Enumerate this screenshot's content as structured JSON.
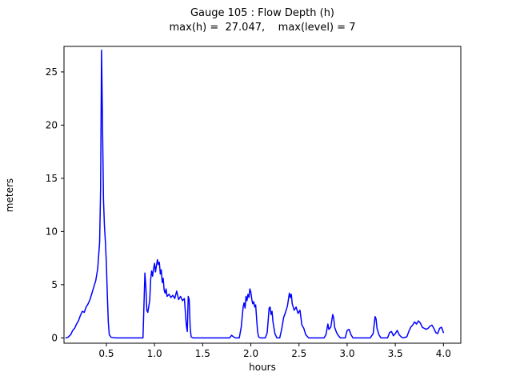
{
  "figure": {
    "title_line1": "Gauge 105 : Flow Depth (h)",
    "title_line2": "max(h) =  27.047,    max(level) = 7",
    "xlabel": "hours",
    "ylabel": "meters"
  },
  "chart_data": {
    "type": "line",
    "title": "Gauge 105 : Flow Depth (h)",
    "subtitle": "max(h) =  27.047,    max(level) = 7",
    "xlabel": "hours",
    "ylabel": "meters",
    "line_color": "#0000ff",
    "background": "#ffffff",
    "grid": false,
    "max_h": 27.047,
    "max_level": 7,
    "xlim": [
      0.06,
      4.18
    ],
    "ylim": [
      -0.5,
      27.4
    ],
    "xticks": [
      0.5,
      1.0,
      1.5,
      2.0,
      2.5,
      3.0,
      3.5,
      4.0
    ],
    "xtick_labels": [
      "0.5",
      "1.0",
      "1.5",
      "2.0",
      "2.5",
      "3.0",
      "3.5",
      "4.0"
    ],
    "yticks": [
      0,
      5,
      10,
      15,
      20,
      25
    ],
    "ytick_labels": [
      "0",
      "5",
      "10",
      "15",
      "20",
      "25"
    ],
    "x": [
      0.08,
      0.1,
      0.13,
      0.15,
      0.17,
      0.19,
      0.21,
      0.23,
      0.25,
      0.27,
      0.29,
      0.31,
      0.33,
      0.35,
      0.37,
      0.39,
      0.41,
      0.43,
      0.44,
      0.45,
      0.46,
      0.47,
      0.48,
      0.49,
      0.5,
      0.51,
      0.52,
      0.53,
      0.55,
      0.6,
      0.85,
      0.88,
      0.89,
      0.9,
      0.91,
      0.92,
      0.93,
      0.95,
      0.96,
      0.97,
      0.98,
      0.99,
      1.0,
      1.01,
      1.02,
      1.03,
      1.04,
      1.05,
      1.06,
      1.07,
      1.08,
      1.09,
      1.1,
      1.11,
      1.12,
      1.13,
      1.15,
      1.17,
      1.19,
      1.21,
      1.23,
      1.25,
      1.27,
      1.29,
      1.31,
      1.33,
      1.34,
      1.35,
      1.36,
      1.37,
      1.38,
      1.4,
      1.78,
      1.8,
      1.82,
      1.84,
      1.88,
      1.9,
      1.92,
      1.93,
      1.94,
      1.95,
      1.96,
      1.97,
      1.98,
      1.99,
      2.0,
      2.01,
      2.02,
      2.03,
      2.04,
      2.05,
      2.06,
      2.07,
      2.08,
      2.1,
      2.15,
      2.17,
      2.19,
      2.2,
      2.21,
      2.22,
      2.23,
      2.25,
      2.27,
      2.3,
      2.32,
      2.34,
      2.36,
      2.38,
      2.4,
      2.41,
      2.42,
      2.43,
      2.45,
      2.47,
      2.49,
      2.51,
      2.53,
      2.55,
      2.57,
      2.6,
      2.76,
      2.78,
      2.8,
      2.81,
      2.83,
      2.85,
      2.86,
      2.87,
      2.89,
      2.91,
      2.93,
      2.98,
      3.0,
      3.02,
      3.04,
      3.06,
      3.24,
      3.27,
      3.29,
      3.3,
      3.31,
      3.33,
      3.35,
      3.42,
      3.44,
      3.46,
      3.48,
      3.5,
      3.52,
      3.54,
      3.56,
      3.58,
      3.62,
      3.64,
      3.66,
      3.68,
      3.7,
      3.72,
      3.74,
      3.76,
      3.78,
      3.8,
      3.82,
      3.84,
      3.86,
      3.88,
      3.9,
      3.92,
      3.94,
      3.96,
      3.98,
      4.0
    ],
    "y": [
      0.0,
      0.05,
      0.3,
      0.7,
      0.9,
      1.3,
      1.6,
      2.1,
      2.5,
      2.4,
      2.9,
      3.2,
      3.6,
      4.2,
      4.8,
      5.4,
      6.5,
      9.0,
      14.0,
      27.047,
      20.0,
      13.0,
      10.5,
      9.0,
      7.0,
      4.0,
      1.5,
      0.3,
      0.05,
      0.0,
      0.0,
      0.0,
      3.0,
      6.1,
      4.8,
      2.6,
      2.4,
      3.5,
      5.5,
      6.3,
      5.8,
      6.5,
      7.0,
      6.2,
      6.8,
      7.35,
      6.9,
      7.1,
      6.0,
      6.4,
      5.2,
      5.6,
      4.5,
      4.2,
      4.6,
      3.9,
      4.1,
      3.8,
      4.0,
      3.7,
      4.4,
      3.6,
      3.9,
      3.5,
      3.7,
      1.2,
      0.6,
      3.9,
      3.6,
      1.0,
      0.1,
      0.0,
      0.0,
      0.25,
      0.1,
      0.0,
      0.0,
      1.0,
      2.9,
      3.3,
      2.8,
      3.9,
      3.5,
      4.1,
      3.8,
      4.6,
      4.3,
      3.6,
      3.2,
      3.4,
      2.9,
      3.1,
      1.8,
      0.6,
      0.1,
      0.0,
      0.0,
      0.5,
      2.8,
      2.9,
      2.2,
      2.5,
      1.5,
      0.4,
      0.0,
      0.0,
      0.8,
      1.9,
      2.4,
      3.0,
      4.2,
      3.8,
      4.1,
      3.2,
      2.6,
      2.9,
      2.3,
      2.6,
      1.2,
      0.9,
      0.3,
      0.0,
      0.0,
      0.3,
      1.3,
      0.8,
      1.0,
      2.2,
      1.9,
      1.0,
      0.5,
      0.2,
      0.0,
      0.0,
      0.7,
      0.8,
      0.3,
      0.0,
      0.0,
      0.4,
      2.0,
      1.8,
      0.9,
      0.3,
      0.0,
      0.0,
      0.5,
      0.6,
      0.2,
      0.4,
      0.7,
      0.3,
      0.1,
      0.0,
      0.1,
      0.6,
      1.0,
      1.2,
      1.5,
      1.3,
      1.6,
      1.4,
      1.0,
      0.9,
      0.8,
      0.9,
      1.1,
      1.2,
      0.9,
      0.5,
      0.4,
      0.9,
      1.0,
      0.5
    ]
  }
}
